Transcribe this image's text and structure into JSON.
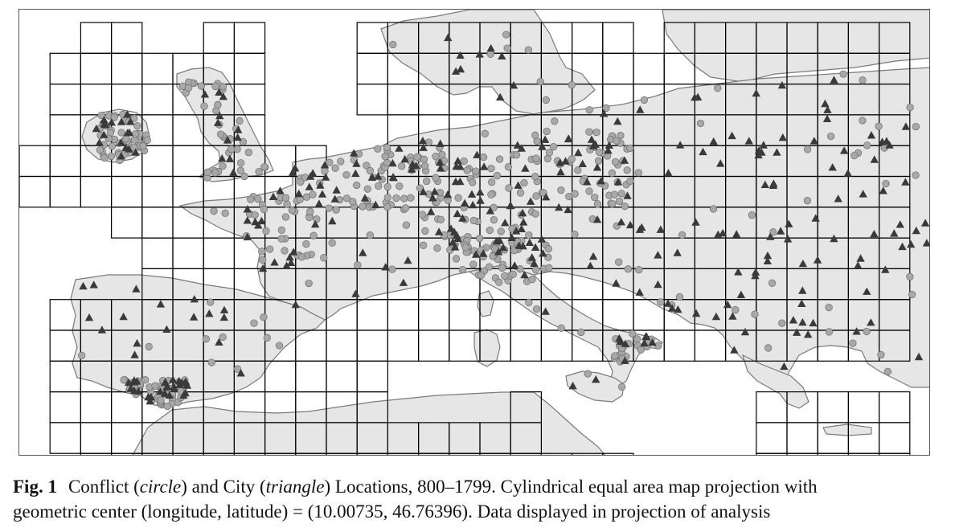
{
  "figure": {
    "label": "Fig. 1",
    "caption_part1": "Conflict (",
    "caption_circle": "circle",
    "caption_part2": ") and City (",
    "caption_triangle": "triangle",
    "caption_part3": ") Locations, 800–1799. Cylindrical equal area map projection with",
    "caption_line2": "geometric center (longitude, latitude) = (10.00735, 46.76396). Data displayed in projection of analysis"
  },
  "map": {
    "projection": "Cylindrical equal area",
    "center_longitude": 10.00735,
    "center_latitude": 46.76396,
    "grid": true,
    "legend": "none",
    "colors": {
      "land": "#e6e6e6",
      "sea": "#ffffff",
      "coast": "#7a7a7a",
      "grid": "#000000",
      "conflict_marker": "#a8a8a8",
      "city_marker": "#3a3a3a"
    },
    "series": [
      {
        "name": "Conflict",
        "marker": "circle"
      },
      {
        "name": "City",
        "marker": "triangle"
      }
    ]
  }
}
